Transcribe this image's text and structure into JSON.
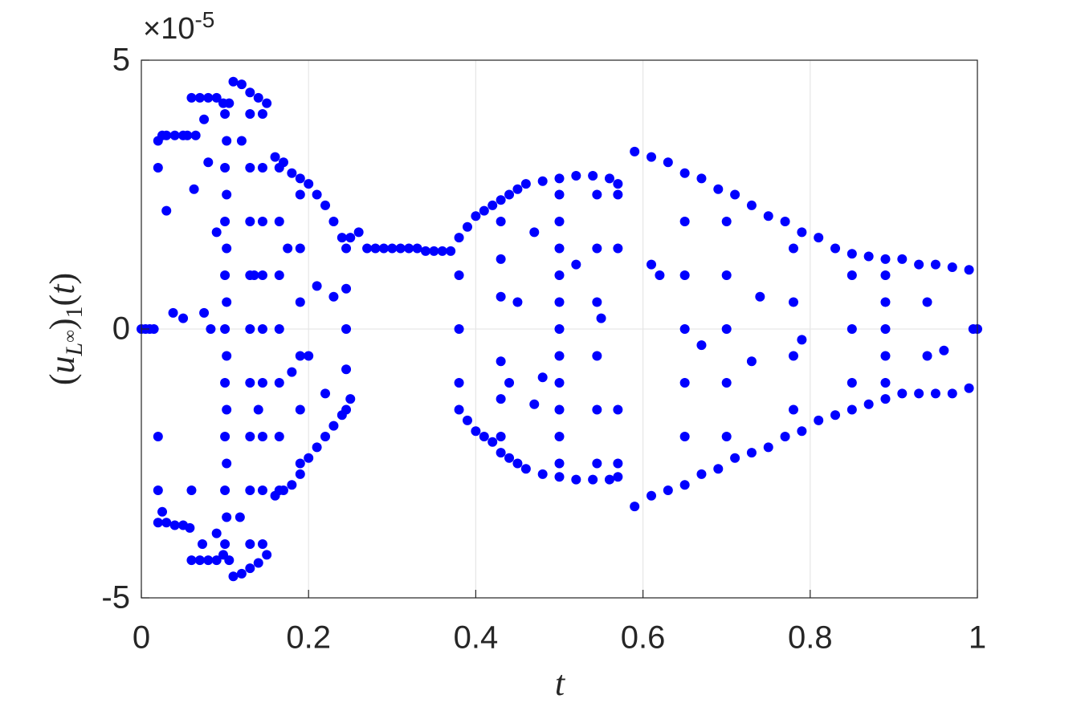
{
  "chart_data": {
    "type": "scatter",
    "xlabel": "t",
    "ylabel": [
      "(",
      "u",
      "L",
      "∞",
      ")",
      "1",
      "(",
      "t",
      ")"
    ],
    "y_scale_base": "×10",
    "y_scale_exponent": "-5",
    "color": "#0000ff",
    "grid": true,
    "xlim": [
      0,
      1
    ],
    "xticks": [
      0,
      0.2,
      0.4,
      0.6,
      0.8,
      1
    ],
    "ylim": [
      -5,
      5
    ],
    "yticks": [
      -5,
      0,
      5
    ],
    "x": [
      0,
      0.005,
      0.01,
      0.015,
      0.02,
      0.025,
      0.03,
      0.04,
      0.05,
      0.055,
      0.02,
      0.03,
      0.04,
      0.05,
      0.058,
      0.02,
      0.03,
      0.038,
      0.05,
      0.02,
      0.02,
      0.025,
      0.06,
      0.07,
      0.08,
      0.09,
      0.098,
      0.06,
      0.07,
      0.08,
      0.09,
      0.098,
      0.065,
      0.063,
      0.075,
      0.08,
      0.09,
      0.083,
      0.075,
      0.06,
      0.073,
      0.09,
      0.1,
      0.1,
      0.1,
      0.1,
      0.1,
      0.1,
      0.1,
      0.1,
      0.1,
      0.102,
      0.102,
      0.102,
      0.102,
      0.102,
      0.102,
      0.102,
      0.102,
      0.105,
      0.105,
      0.11,
      0.12,
      0.13,
      0.14,
      0.15,
      0.11,
      0.12,
      0.13,
      0.14,
      0.15,
      0.13,
      0.13,
      0.13,
      0.13,
      0.13,
      0.13,
      0.13,
      0.13,
      0.13,
      0.145,
      0.145,
      0.145,
      0.145,
      0.145,
      0.145,
      0.145,
      0.145,
      0.145,
      0.12,
      0.118,
      0.135,
      0.14,
      0.16,
      0.17,
      0.18,
      0.19,
      0.2,
      0.21,
      0.22,
      0.23,
      0.24,
      0.25,
      0.26,
      0.16,
      0.17,
      0.18,
      0.19,
      0.2,
      0.21,
      0.22,
      0.23,
      0.24,
      0.25,
      0.165,
      0.165,
      0.165,
      0.165,
      0.165,
      0.165,
      0.165,
      0.19,
      0.19,
      0.19,
      0.19,
      0.19,
      0.19,
      0.245,
      0.245,
      0.245,
      0.245,
      0.245,
      0.175,
      0.18,
      0.2,
      0.21,
      0.22,
      0.23,
      0.27,
      0.28,
      0.29,
      0.3,
      0.31,
      0.32,
      0.33,
      0.34,
      0.35,
      0.36,
      0.37,
      0.38,
      0.39,
      0.4,
      0.41,
      0.42,
      0.43,
      0.44,
      0.45,
      0.46,
      0.48,
      0.5,
      0.52,
      0.54,
      0.56,
      0.57,
      0.38,
      0.39,
      0.4,
      0.41,
      0.42,
      0.43,
      0.44,
      0.45,
      0.46,
      0.48,
      0.5,
      0.52,
      0.54,
      0.56,
      0.57,
      0.38,
      0.38,
      0.38,
      0.43,
      0.43,
      0.43,
      0.43,
      0.43,
      0.43,
      0.5,
      0.5,
      0.5,
      0.5,
      0.5,
      0.5,
      0.5,
      0.5,
      0.5,
      0.5,
      0.5,
      0.545,
      0.545,
      0.545,
      0.545,
      0.545,
      0.545,
      0.57,
      0.57,
      0.57,
      0.57,
      0.47,
      0.47,
      0.48,
      0.44,
      0.45,
      0.52,
      0.55,
      0.59,
      0.61,
      0.63,
      0.65,
      0.67,
      0.69,
      0.71,
      0.73,
      0.75,
      0.77,
      0.79,
      0.81,
      0.83,
      0.85,
      0.87,
      0.89,
      0.91,
      0.93,
      0.95,
      0.97,
      0.99,
      0.59,
      0.61,
      0.63,
      0.65,
      0.67,
      0.69,
      0.71,
      0.73,
      0.75,
      0.77,
      0.79,
      0.81,
      0.83,
      0.85,
      0.87,
      0.89,
      0.91,
      0.93,
      0.95,
      0.97,
      0.99,
      0.65,
      0.65,
      0.65,
      0.65,
      0.65,
      0.7,
      0.7,
      0.7,
      0.7,
      0.7,
      0.78,
      0.78,
      0.78,
      0.78,
      0.85,
      0.85,
      0.85,
      0.89,
      0.89,
      0.89,
      0.89,
      0.89,
      0.94,
      0.94,
      0.61,
      0.62,
      0.67,
      0.73,
      0.74,
      0.79,
      0.96,
      0.995,
      1.0
    ],
    "values": [
      0,
      0,
      0,
      0,
      3.5,
      3.6,
      3.6,
      3.6,
      3.6,
      3.6,
      -3.6,
      -3.6,
      -3.65,
      -3.65,
      -3.7,
      3.0,
      2.2,
      0.3,
      0.2,
      -2.0,
      -3.0,
      -3.4,
      4.3,
      4.3,
      4.3,
      4.3,
      4.2,
      -4.3,
      -4.3,
      -4.3,
      -4.3,
      -4.2,
      3.6,
      2.6,
      3.9,
      3.1,
      1.8,
      0,
      0.3,
      -3.0,
      -4.0,
      -3.8,
      -4,
      -3,
      -2,
      -1,
      0,
      1,
      2,
      3,
      4,
      -3.5,
      -2.5,
      -1.5,
      -0.5,
      0.5,
      1.5,
      2.5,
      3.5,
      -4.3,
      4.2,
      4.6,
      4.55,
      4.4,
      4.3,
      4.2,
      -4.6,
      -4.55,
      -4.45,
      -4.35,
      -4.2,
      -4,
      -3,
      -2,
      -1,
      0,
      1,
      2,
      3,
      4,
      -4,
      -3,
      -2,
      -1,
      0,
      1,
      2,
      3,
      4,
      3.5,
      -3.5,
      1.0,
      -1.5,
      3.2,
      3.1,
      2.9,
      2.8,
      2.7,
      2.5,
      2.3,
      2.0,
      1.7,
      1.7,
      1.8,
      -3.1,
      -3.0,
      -2.9,
      -2.7,
      -2.4,
      -2.2,
      -2.0,
      -1.8,
      -1.6,
      -1.3,
      -3,
      -2,
      -1,
      0,
      1,
      2,
      3,
      -2.5,
      -1.5,
      -0.5,
      0.5,
      1.5,
      2.5,
      -1.5,
      -0.75,
      0,
      0.75,
      1.5,
      1.5,
      -0.8,
      -0.5,
      0.8,
      -1.2,
      0.6,
      1.5,
      1.5,
      1.5,
      1.5,
      1.5,
      1.5,
      1.5,
      1.45,
      1.45,
      1.45,
      1.45,
      1.7,
      1.9,
      2.1,
      2.2,
      2.3,
      2.4,
      2.5,
      2.6,
      2.7,
      2.75,
      2.8,
      2.85,
      2.85,
      2.8,
      2.7,
      -1.5,
      -1.7,
      -1.9,
      -2.0,
      -2.1,
      -2.3,
      -2.4,
      -2.5,
      -2.6,
      -2.7,
      -2.75,
      -2.8,
      -2.8,
      -2.8,
      -2.75,
      -1,
      0,
      1,
      -2,
      -1.3,
      -0.6,
      0.6,
      1.3,
      2,
      -2.5,
      -2,
      -1.5,
      -1,
      -0.5,
      0,
      0.5,
      1,
      1.5,
      2,
      2.5,
      -2.5,
      -1.5,
      -0.5,
      0.5,
      1.5,
      2.5,
      -2.5,
      -1.5,
      1.5,
      2.5,
      1.8,
      -1.4,
      -0.9,
      -1.0,
      0.5,
      1.2,
      0.2,
      3.3,
      3.2,
      3.1,
      2.9,
      2.8,
      2.6,
      2.5,
      2.3,
      2.1,
      2.0,
      1.8,
      1.7,
      1.5,
      1.4,
      1.35,
      1.3,
      1.3,
      1.2,
      1.2,
      1.15,
      1.1,
      -3.3,
      -3.1,
      -3.0,
      -2.9,
      -2.7,
      -2.6,
      -2.4,
      -2.3,
      -2.2,
      -2.0,
      -1.9,
      -1.7,
      -1.6,
      -1.5,
      -1.4,
      -1.3,
      -1.2,
      -1.2,
      -1.2,
      -1.2,
      -1.1,
      -2,
      -1,
      0,
      1,
      2,
      -2,
      -1,
      0,
      1,
      2,
      -1.5,
      -0.5,
      0.5,
      1.5,
      -1,
      0,
      1,
      -1,
      -0.5,
      0,
      0.5,
      1,
      -0.5,
      0.5,
      1.2,
      1.0,
      -0.3,
      -0.6,
      0.6,
      -0.2,
      -0.4,
      0,
      0
    ]
  }
}
